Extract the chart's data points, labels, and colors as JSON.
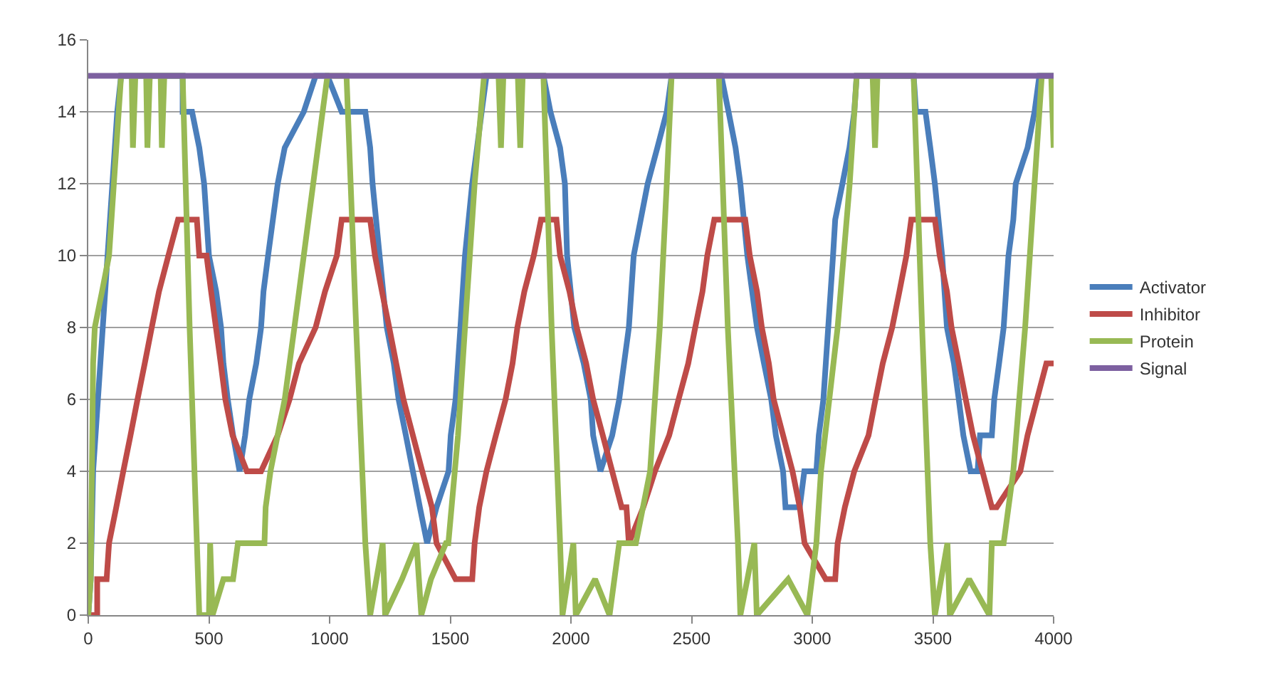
{
  "chart_data": {
    "type": "line",
    "xlim": [
      0,
      4000
    ],
    "xticks": [
      0,
      500,
      1000,
      1500,
      2000,
      2500,
      3000,
      3500,
      4000
    ],
    "ylim": [
      0,
      16
    ],
    "yticks": [
      0,
      2,
      4,
      6,
      8,
      10,
      12,
      14,
      16
    ],
    "grid": "y",
    "legend": "right",
    "marker": "none",
    "line_style": "solid",
    "series": [
      {
        "name": "Activator",
        "color": "#4a7ebb",
        "x": [
          0,
          10,
          20,
          40,
          60,
          80,
          100,
          110,
          120,
          136,
          391,
          391,
          430,
          460,
          480,
          500,
          530,
          550,
          560,
          578,
          600,
          627,
          650,
          667,
          696,
          716,
          726,
          745,
          765,
          785,
          814,
          893,
          942,
          991,
          1050,
          1148,
          1168,
          1178,
          1207,
          1237,
          1266,
          1286,
          1316,
          1345,
          1374,
          1404,
          1443,
          1493,
          1502,
          1522,
          1542,
          1561,
          1591,
          1611,
          1630,
          1650,
          1886,
          1915,
          1955,
          1975,
          1984,
          2014,
          2053,
          2082,
          2092,
          2122,
          2171,
          2200,
          2220,
          2240,
          2260,
          2289,
          2318,
          2358,
          2397,
          2417,
          2623,
          2653,
          2682,
          2702,
          2731,
          2771,
          2800,
          2830,
          2849,
          2879,
          2889,
          2948,
          2967,
          3017,
          3027,
          3046,
          3066,
          3086,
          3095,
          3125,
          3154,
          3174,
          3184,
          3420,
          3430,
          3469,
          3489,
          3508,
          3538,
          3558,
          3587,
          3607,
          3626,
          3656,
          3685,
          3695,
          3744,
          3754,
          3774,
          3793,
          3813,
          3833,
          3843,
          3892,
          3921,
          3941,
          4000
        ],
        "values": [
          0,
          1,
          4,
          6,
          8,
          10,
          12,
          13,
          14,
          15,
          15,
          14,
          14,
          13,
          12,
          10,
          9,
          8,
          7,
          6,
          5,
          4,
          5,
          6,
          7,
          8,
          9,
          10,
          11,
          12,
          13,
          14,
          15,
          15,
          14,
          14,
          13,
          12,
          10,
          8,
          7,
          6,
          5,
          4,
          3,
          2,
          3,
          4,
          5,
          6,
          8,
          10,
          12,
          13,
          14,
          15,
          15,
          14,
          13,
          12,
          10,
          8,
          7,
          6,
          5,
          4,
          5,
          6,
          7,
          8,
          10,
          11,
          12,
          13,
          14,
          15,
          15,
          14,
          13,
          12,
          10,
          8,
          7,
          6,
          5,
          4,
          3,
          3,
          4,
          4,
          5,
          6,
          8,
          10,
          11,
          12,
          13,
          14,
          15,
          15,
          14,
          14,
          13,
          12,
          10,
          8,
          7,
          6,
          5,
          4,
          4,
          5,
          5,
          6,
          7,
          8,
          10,
          11,
          12,
          13,
          14,
          15,
          15
        ]
      },
      {
        "name": "Inhibitor",
        "color": "#be4b48",
        "x": [
          0,
          37,
          37,
          76,
          86,
          116,
          145,
          175,
          204,
          234,
          263,
          293,
          332,
          372,
          450,
          460,
          490,
          509,
          529,
          549,
          568,
          598,
          657,
          716,
          785,
          834,
          873,
          942,
          981,
          1030,
          1050,
          1168,
          1188,
          1217,
          1247,
          1276,
          1306,
          1345,
          1384,
          1424,
          1443,
          1522,
          1591,
          1601,
          1620,
          1650,
          1689,
          1729,
          1758,
          1778,
          1807,
          1846,
          1876,
          1940,
          1955,
          1994,
          2024,
          2063,
          2092,
          2132,
          2171,
          2210,
          2230,
          2240,
          2300,
          2348,
          2407,
          2446,
          2486,
          2515,
          2545,
          2565,
          2594,
          2722,
          2741,
          2771,
          2791,
          2820,
          2840,
          2879,
          2918,
          2948,
          2968,
          3056,
          3095,
          3105,
          3135,
          3174,
          3233,
          3262,
          3292,
          3331,
          3361,
          3390,
          3410,
          3508,
          3528,
          3558,
          3577,
          3607,
          3636,
          3666,
          3705,
          3744,
          3764,
          3862,
          3892,
          3931,
          3970,
          4000
        ],
        "values": [
          0,
          0,
          1,
          1,
          2,
          3,
          4,
          5,
          6,
          7,
          8,
          9,
          10,
          11,
          11,
          10,
          10,
          9,
          8,
          7,
          6,
          5,
          4,
          4,
          5,
          6,
          7,
          8,
          9,
          10,
          11,
          11,
          10,
          9,
          8,
          7,
          6,
          5,
          4,
          3,
          2,
          1,
          1,
          2,
          3,
          4,
          5,
          6,
          7,
          8,
          9,
          10,
          11,
          11,
          10,
          9,
          8,
          7,
          6,
          5,
          4,
          3,
          3,
          2,
          3,
          4,
          5,
          6,
          7,
          8,
          9,
          10,
          11,
          11,
          10,
          9,
          8,
          7,
          6,
          5,
          4,
          3,
          2,
          1,
          1,
          2,
          3,
          4,
          5,
          6,
          7,
          8,
          9,
          10,
          11,
          11,
          10,
          9,
          8,
          7,
          6,
          5,
          4,
          3,
          3,
          4,
          5,
          6,
          7,
          7
        ]
      },
      {
        "name": "Protein",
        "color": "#98b954",
        "x": [
          0,
          10,
          20,
          27,
          57,
          86,
          106,
          126,
          136,
          180,
          185,
          195,
          240,
          245,
          255,
          300,
          305,
          315,
          391,
          420,
          450,
          460,
          500,
          505,
          515,
          560,
          600,
          620,
          647,
          730,
          735,
          755,
          814,
          854,
          893,
          932,
          971,
          991,
          1070,
          1110,
          1148,
          1168,
          1220,
          1230,
          1300,
          1360,
          1380,
          1420,
          1482,
          1492,
          1532,
          1561,
          1601,
          1640,
          1700,
          1710,
          1720,
          1780,
          1790,
          1800,
          1886,
          1920,
          1955,
          1965,
          2010,
          2020,
          2100,
          2160,
          2200,
          2269,
          2328,
          2368,
          2397,
          2417,
          2613,
          2650,
          2692,
          2702,
          2760,
          2770,
          2900,
          2980,
          3017,
          3036,
          3105,
          3155,
          3184,
          3250,
          3260,
          3270,
          3420,
          3455,
          3489,
          3508,
          3560,
          3570,
          3650,
          3734,
          3744,
          3793,
          3833,
          3882,
          3921,
          3951,
          3990,
          4000
        ],
        "values": [
          0,
          1,
          7,
          8,
          9,
          10,
          12,
          14,
          15,
          15,
          13,
          15,
          15,
          13,
          15,
          15,
          13,
          15,
          15,
          8,
          2,
          0,
          0,
          2,
          0,
          1,
          1,
          2,
          2,
          2,
          3,
          4,
          6,
          8,
          10,
          12,
          14,
          15,
          15,
          8,
          2,
          0,
          2,
          0,
          1,
          2,
          0,
          1,
          2,
          2,
          5,
          8,
          12,
          15,
          15,
          13,
          15,
          15,
          13,
          15,
          15,
          8,
          2,
          0,
          2,
          0,
          1,
          0,
          2,
          2,
          4,
          8,
          12,
          15,
          15,
          8,
          2,
          0,
          2,
          0,
          1,
          0,
          2,
          4,
          8,
          12,
          15,
          15,
          13,
          15,
          15,
          8,
          2,
          0,
          2,
          0,
          1,
          0,
          2,
          2,
          4,
          8,
          12,
          15,
          15,
          13
        ]
      },
      {
        "name": "Signal",
        "color": "#7d60a0",
        "x": [
          0,
          4000
        ],
        "values": [
          15,
          15
        ]
      }
    ]
  }
}
